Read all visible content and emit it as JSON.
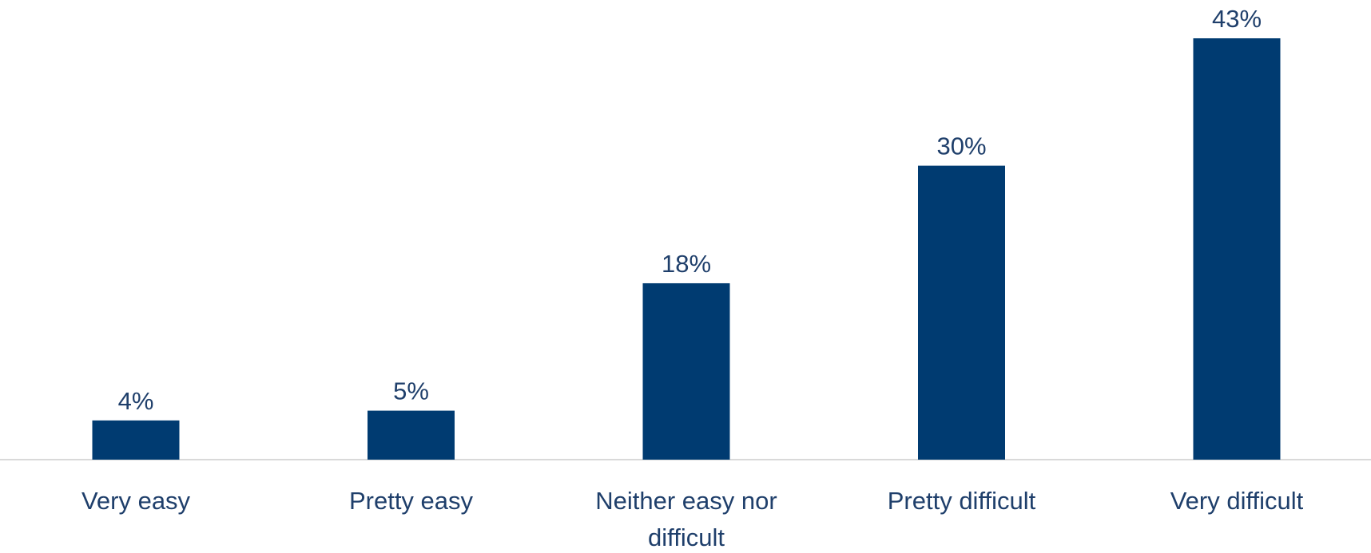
{
  "chart_data": {
    "type": "bar",
    "categories": [
      [
        "Very easy"
      ],
      [
        "Pretty easy"
      ],
      [
        "Neither easy nor",
        "difficult"
      ],
      [
        "Pretty difficult"
      ],
      [
        "Very difficult"
      ]
    ],
    "values": [
      4,
      5,
      18,
      30,
      43
    ],
    "value_labels": [
      "4%",
      "5%",
      "18%",
      "30%",
      "43%"
    ],
    "title": "",
    "xlabel": "",
    "ylabel": "",
    "ylim": [
      0,
      43
    ],
    "grid": false,
    "legend": "none",
    "colors": {
      "bar": "#003b71",
      "axis": "#d9d9d9",
      "text": "#1f3f6b"
    }
  }
}
